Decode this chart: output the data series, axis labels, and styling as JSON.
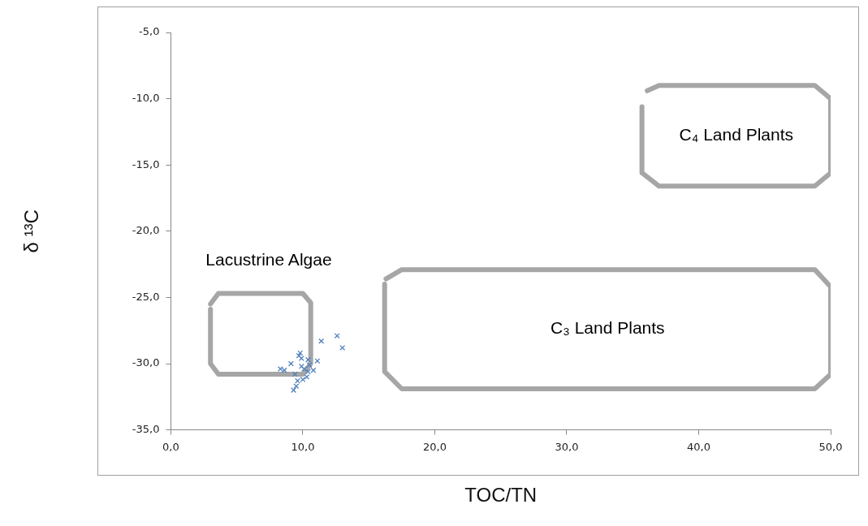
{
  "chart_data": {
    "type": "scatter",
    "xlabel": "TOC/TN",
    "ylabel": "δ ¹³C",
    "xlim": [
      0,
      50
    ],
    "ylim": [
      -35,
      -5
    ],
    "xticks": [
      {
        "value": 0,
        "label": "0,0"
      },
      {
        "value": 10,
        "label": "10,0"
      },
      {
        "value": 20,
        "label": "20,0"
      },
      {
        "value": 30,
        "label": "30,0"
      },
      {
        "value": 40,
        "label": "40,0"
      },
      {
        "value": 50,
        "label": "50,0"
      }
    ],
    "yticks": [
      {
        "value": -35,
        "label": "-35,0"
      },
      {
        "value": -30,
        "label": "-30,0"
      },
      {
        "value": -25,
        "label": "-25,0"
      },
      {
        "value": -20,
        "label": "-20,0"
      },
      {
        "value": -15,
        "label": "-15,0"
      },
      {
        "value": -10,
        "label": "-10,0"
      },
      {
        "value": -5,
        "label": "-5,0"
      }
    ],
    "grid": false,
    "legend": false,
    "series": [
      {
        "type": "scatter",
        "marker": "cross",
        "color": "#4f81bd",
        "x": [
          11.4,
          12.6,
          13.0,
          9.8,
          9.1,
          8.3,
          8.6,
          9.9,
          10.4,
          11.1,
          10.5,
          10.1,
          10.4,
          10.8,
          9.4,
          9.6,
          10.0,
          10.3,
          9.3,
          9.5,
          9.9,
          9.7
        ],
        "values": [
          -28.3,
          -27.9,
          -28.8,
          -29.2,
          -30.0,
          -30.4,
          -30.5,
          -29.6,
          -29.7,
          -29.8,
          -30.1,
          -30.4,
          -30.6,
          -30.5,
          -30.8,
          -31.3,
          -31.2,
          -31.0,
          -32.0,
          -31.7,
          -30.2,
          -29.4
        ]
      },
      {
        "type": "line",
        "marker": "none",
        "name": "Lacustrine Algae",
        "color": "#a6a6a6",
        "x": [
          3.0,
          3.0,
          3.6,
          10.0,
          10.6,
          10.6,
          10.0,
          3.6,
          3.0
        ],
        "values": [
          -25.9,
          -30.0,
          -30.8,
          -30.8,
          -30.0,
          -25.4,
          -24.7,
          -24.7,
          -25.5
        ]
      },
      {
        "type": "line",
        "marker": "none",
        "name": "C₃ Land Plants",
        "color": "#a6a6a6",
        "x": [
          16.2,
          16.2,
          17.5,
          48.8,
          50.0,
          50.0,
          48.8,
          17.5,
          16.3
        ],
        "values": [
          -24.0,
          -30.6,
          -31.9,
          -31.9,
          -30.8,
          -24.2,
          -22.9,
          -22.9,
          -23.6
        ]
      },
      {
        "type": "line",
        "marker": "none",
        "name": "C₄ Land Plants",
        "color": "#a6a6a6",
        "x": [
          35.7,
          35.7,
          37.0,
          48.8,
          50.0,
          50.0,
          48.8,
          37.0,
          36.1
        ],
        "values": [
          -10.6,
          -15.6,
          -16.6,
          -16.6,
          -15.6,
          -10.0,
          -9.0,
          -9.0,
          -9.4
        ]
      }
    ]
  }
}
